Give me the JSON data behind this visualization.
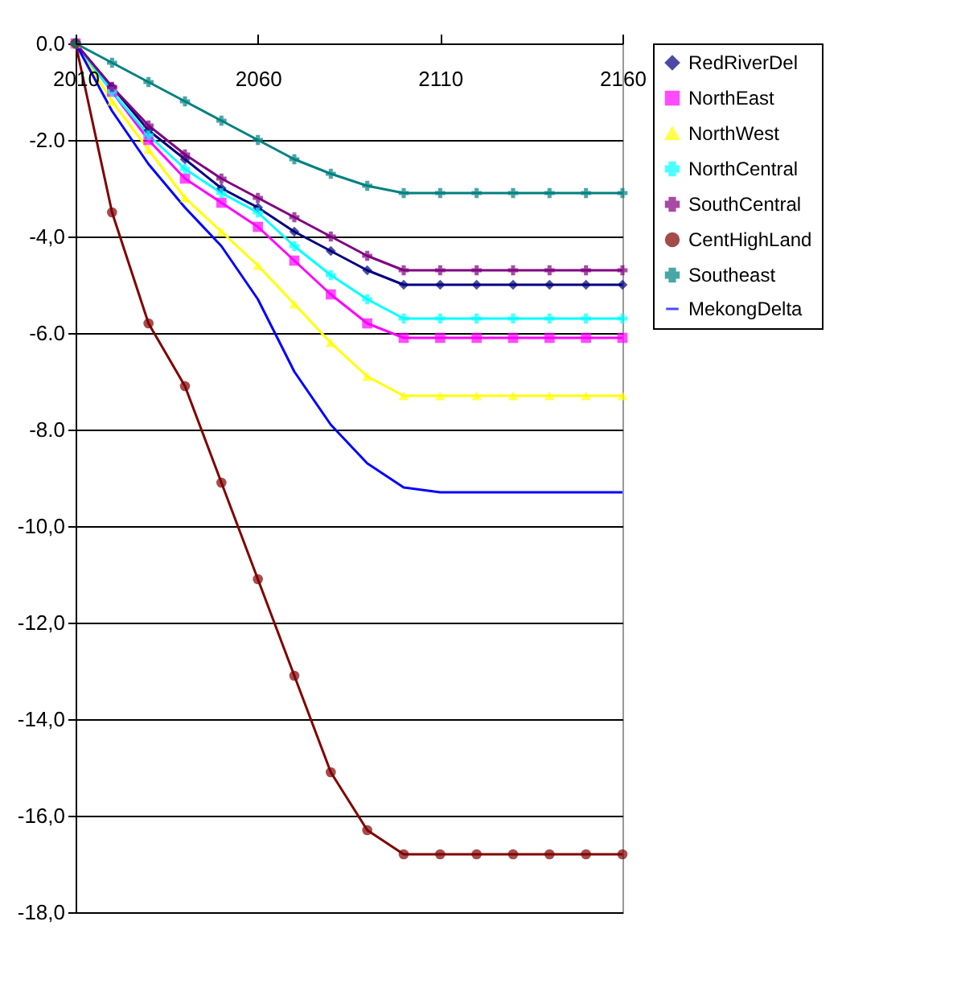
{
  "chart_data": {
    "type": "line",
    "x": [
      2010,
      2020,
      2030,
      2040,
      2050,
      2060,
      2070,
      2080,
      2090,
      2100,
      2110,
      2120,
      2130,
      2140,
      2150,
      2160
    ],
    "xlim": [
      2010,
      2160
    ],
    "xticks": [
      2010,
      2060,
      2110,
      2160
    ],
    "ylim": [
      -18,
      0
    ],
    "yticks": [
      {
        "value": 0,
        "label": "0.0"
      },
      {
        "value": -2,
        "label": "-2.0"
      },
      {
        "value": -4,
        "label": "-4,0"
      },
      {
        "value": -6,
        "label": "-6.0"
      },
      {
        "value": -8,
        "label": "-8.0"
      },
      {
        "value": -10,
        "label": "-10,0"
      },
      {
        "value": -12,
        "label": "-12,0"
      },
      {
        "value": -14,
        "label": "-14,0"
      },
      {
        "value": -16,
        "label": "-16,0"
      },
      {
        "value": -18,
        "label": "-18,0"
      }
    ],
    "grid": "y",
    "legend": "right",
    "series": [
      {
        "name": "RedRiverDel",
        "color": "#000080",
        "marker": "diamond",
        "values": [
          0,
          -0.9,
          -1.8,
          -2.4,
          -3.0,
          -3.4,
          -3.9,
          -4.3,
          -4.7,
          -5.0,
          -5.0,
          -5.0,
          -5.0,
          -5.0,
          -5.0,
          -5.0
        ]
      },
      {
        "name": "NorthEast",
        "color": "#ff00ff",
        "marker": "square",
        "values": [
          0,
          -1.0,
          -2.0,
          -2.8,
          -3.3,
          -3.8,
          -4.5,
          -5.2,
          -5.8,
          -6.1,
          -6.1,
          -6.1,
          -6.1,
          -6.1,
          -6.1,
          -6.1
        ]
      },
      {
        "name": "NorthWest",
        "color": "#ffff00",
        "marker": "triangle",
        "values": [
          0,
          -1.2,
          -2.2,
          -3.2,
          -3.9,
          -4.6,
          -5.4,
          -6.2,
          -6.9,
          -7.3,
          -7.3,
          -7.3,
          -7.3,
          -7.3,
          -7.3,
          -7.3
        ]
      },
      {
        "name": "NorthCentral",
        "color": "#00ffff",
        "marker": "cross",
        "values": [
          0,
          -1.0,
          -1.9,
          -2.6,
          -3.1,
          -3.5,
          -4.2,
          -4.8,
          -5.3,
          -5.7,
          -5.7,
          -5.7,
          -5.7,
          -5.7,
          -5.7,
          -5.7
        ]
      },
      {
        "name": "SouthCentral",
        "color": "#800080",
        "marker": "cross",
        "values": [
          0,
          -0.9,
          -1.7,
          -2.3,
          -2.8,
          -3.2,
          -3.6,
          -4.0,
          -4.4,
          -4.7,
          -4.7,
          -4.7,
          -4.7,
          -4.7,
          -4.7,
          -4.7
        ]
      },
      {
        "name": "CentHighLand",
        "color": "#800000",
        "marker": "circle",
        "values": [
          0,
          -3.5,
          -5.8,
          -7.1,
          -9.1,
          -11.1,
          -13.1,
          -15.1,
          -16.3,
          -16.8,
          -16.8,
          -16.8,
          -16.8,
          -16.8,
          -16.8,
          -16.8
        ]
      },
      {
        "name": "Southeast",
        "color": "#008080",
        "marker": "cross",
        "values": [
          0,
          -0.4,
          -0.8,
          -1.2,
          -1.6,
          -2.0,
          -2.4,
          -2.7,
          -2.95,
          -3.1,
          -3.1,
          -3.1,
          -3.1,
          -3.1,
          -3.1,
          -3.1
        ]
      },
      {
        "name": "MekongDelta",
        "color": "#0000ff",
        "marker": "none",
        "values": [
          0,
          -1.4,
          -2.5,
          -3.4,
          -4.2,
          -5.3,
          -6.8,
          -7.9,
          -8.7,
          -9.2,
          -9.3,
          -9.3,
          -9.3,
          -9.3,
          -9.3,
          -9.3
        ]
      }
    ]
  }
}
